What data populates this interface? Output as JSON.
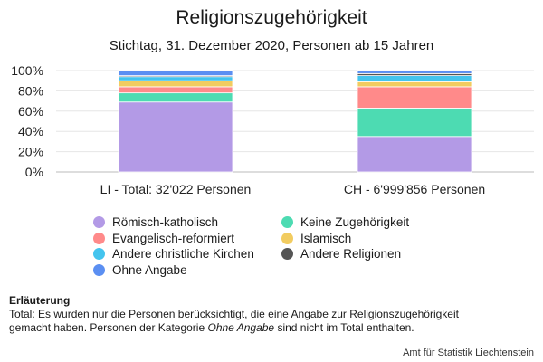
{
  "chart_data": {
    "type": "bar",
    "stacked": true,
    "title": "Religionszugehörigkeit",
    "subtitle": "Stichtag, 31. Dezember 2020, Personen ab 15 Jahren",
    "categories": [
      "LI - Total: 32'022 Personen",
      "CH - 6'999'856 Personen"
    ],
    "ylim": [
      0,
      100
    ],
    "yticks": [
      "0%",
      "20%",
      "40%",
      "60%",
      "80%",
      "100%"
    ],
    "grid": true,
    "legend_position": "bottom",
    "series": [
      {
        "name": "Römisch-katholisch",
        "color": "#b39ae6",
        "values": [
          69,
          35
        ]
      },
      {
        "name": "Keine Zugehörigkeit",
        "color": "#4ddbb2",
        "values": [
          9,
          28
        ]
      },
      {
        "name": "Evangelisch-reformiert",
        "color": "#ff8a8a",
        "values": [
          6,
          21
        ]
      },
      {
        "name": "Islamisch",
        "color": "#f2cc60",
        "values": [
          6,
          5
        ]
      },
      {
        "name": "Andere christliche Kirchen",
        "color": "#44c4ee",
        "values": [
          4,
          6
        ]
      },
      {
        "name": "Andere Religionen",
        "color": "#555555",
        "values": [
          1,
          2
        ]
      },
      {
        "name": "Ohne Angabe",
        "color": "#5b8ff2",
        "values": [
          5,
          3
        ]
      }
    ]
  },
  "note": {
    "heading": "Erläuterung",
    "line1": "Total: Es wurden nur die Personen berücksichtigt, die eine Angabe zur Religionszugehörigkeit",
    "line2_before": "gemacht haben. Personen der Kategorie ",
    "line2_em": "Ohne Angabe",
    "line2_after": " sind nicht im Total enthalten."
  },
  "credit": "Amt für Statistik Liechtenstein"
}
